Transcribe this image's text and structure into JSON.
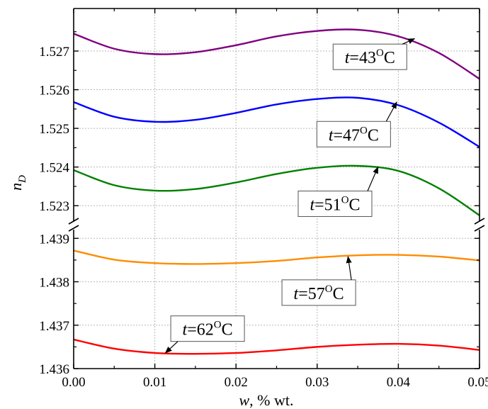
{
  "chart_data": {
    "type": "line",
    "xlabel": {
      "var": "w",
      "rest": ", % wt."
    },
    "ylabel": {
      "var": "n",
      "sub": "D"
    },
    "x_ticks": [
      "0.00",
      "0.01",
      "0.02",
      "0.03",
      "0.04",
      "0.05"
    ],
    "xlim": [
      0,
      0.05
    ],
    "y_upper_ticks": [
      "1.523",
      "1.524",
      "1.525",
      "1.526",
      "1.527"
    ],
    "y_lower_ticks": [
      "1.436",
      "1.437",
      "1.438",
      "1.439"
    ],
    "ylim_upper": [
      1.5226,
      1.5281
    ],
    "ylim_lower": [
      1.436,
      1.4392
    ],
    "axis_break": true,
    "grid": true,
    "series": [
      {
        "color": "#800080",
        "panel": "upper",
        "label": {
          "var": "t",
          "val": "=43",
          "sup": "O",
          "unit": "C"
        },
        "x": [
          0,
          0.005,
          0.01,
          0.015,
          0.02,
          0.025,
          0.03,
          0.035,
          0.04,
          0.045,
          0.05
        ],
        "y": [
          1.52745,
          1.52706,
          1.52692,
          1.52697,
          1.52715,
          1.52738,
          1.52752,
          1.52755,
          1.52738,
          1.52695,
          1.52628
        ],
        "label_x": 0.0365,
        "label_y": 1.52685,
        "arrow_to_x": 0.042,
        "arrow_to_y": 1.52732
      },
      {
        "color": "#0000ff",
        "panel": "upper",
        "label": {
          "var": "t",
          "val": "=47",
          "sup": "O",
          "unit": "C"
        },
        "x": [
          0,
          0.005,
          0.01,
          0.015,
          0.02,
          0.025,
          0.03,
          0.035,
          0.04,
          0.045,
          0.05
        ],
        "y": [
          1.52568,
          1.5253,
          1.52517,
          1.52522,
          1.5254,
          1.52562,
          1.52576,
          1.52579,
          1.5256,
          1.52515,
          1.52452
        ],
        "label_x": 0.0345,
        "label_y": 1.52485,
        "arrow_to_x": 0.0398,
        "arrow_to_y": 1.52568
      },
      {
        "color": "#008000",
        "panel": "upper",
        "label": {
          "var": "t",
          "val": "=51",
          "sup": "O",
          "unit": "C"
        },
        "x": [
          0,
          0.005,
          0.01,
          0.015,
          0.02,
          0.025,
          0.03,
          0.035,
          0.04,
          0.045,
          0.05
        ],
        "y": [
          1.52392,
          1.52353,
          1.52339,
          1.52343,
          1.5236,
          1.52382,
          1.52398,
          1.52403,
          1.5239,
          1.52345,
          1.52275
        ],
        "label_x": 0.0322,
        "label_y": 1.52305,
        "arrow_to_x": 0.0375,
        "arrow_to_y": 1.524
      },
      {
        "color": "#ff8c00",
        "panel": "lower",
        "label": {
          "var": "t",
          "val": "=57",
          "sup": "O",
          "unit": "C"
        },
        "x": [
          0,
          0.005,
          0.01,
          0.015,
          0.02,
          0.025,
          0.03,
          0.035,
          0.04,
          0.045,
          0.05
        ],
        "y": [
          1.43872,
          1.43851,
          1.43843,
          1.43841,
          1.43843,
          1.43848,
          1.43856,
          1.43861,
          1.43862,
          1.43858,
          1.43849
        ],
        "label_x": 0.0302,
        "label_y": 1.43775,
        "arrow_to_x": 0.0338,
        "arrow_to_y": 1.43858
      },
      {
        "color": "#ff0000",
        "panel": "lower",
        "label": {
          "var": "t",
          "val": "=62",
          "sup": "O",
          "unit": "C"
        },
        "x": [
          0,
          0.005,
          0.01,
          0.015,
          0.02,
          0.025,
          0.03,
          0.035,
          0.04,
          0.045,
          0.05
        ],
        "y": [
          1.43667,
          1.43646,
          1.43636,
          1.43634,
          1.43636,
          1.43642,
          1.4365,
          1.43655,
          1.43657,
          1.43653,
          1.43643
        ],
        "label_x": 0.0165,
        "label_y": 1.43692,
        "arrow_to_x": 0.0113,
        "arrow_to_y": 1.43636
      }
    ]
  }
}
